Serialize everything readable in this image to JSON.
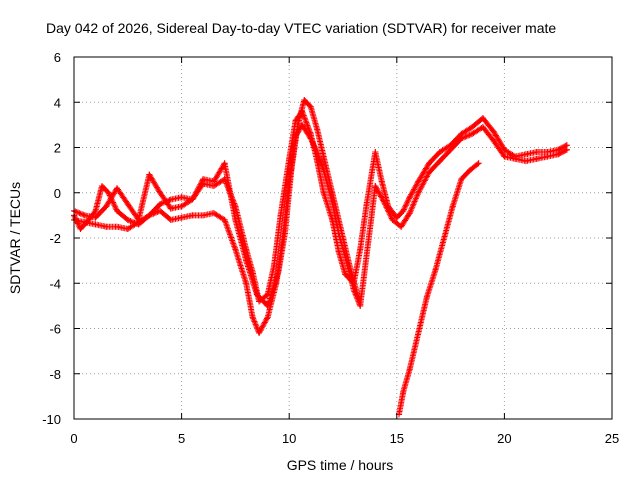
{
  "chart_data": {
    "type": "scatter",
    "title": "Day 042 of 2026, Sidereal Day-to-day VTEC variation (SDTVAR) for receiver mate",
    "xlabel": "GPS time / hours",
    "ylabel": "SDTVAR / TECUs",
    "xlim": [
      0,
      25
    ],
    "ylim": [
      -10,
      6
    ],
    "xticks": [
      0,
      5,
      10,
      15,
      20,
      25
    ],
    "yticks": [
      -10,
      -8,
      -6,
      -4,
      -2,
      0,
      2,
      4,
      6
    ],
    "xtick_labels": [
      "0",
      "5",
      "10",
      "15",
      "20",
      "25"
    ],
    "ytick_labels": [
      "-10",
      "-8",
      "-6",
      "-4",
      "-2",
      "0",
      "2",
      "4",
      "6"
    ],
    "grid": true,
    "grid_style": "dotted",
    "legend": "none",
    "marker": "+",
    "color": "#ff0000",
    "series": [
      {
        "x": [
          0.0,
          0.3,
          0.6,
          1.0,
          1.3,
          1.6,
          2.0,
          2.5,
          3.0,
          3.5,
          4.0,
          4.5,
          5.0,
          5.5,
          6.0,
          6.5,
          7.0,
          7.5,
          8.0,
          8.3,
          8.6,
          9.0,
          9.3,
          9.6,
          10.0,
          10.3,
          10.6,
          11.0,
          11.3,
          11.6,
          12.0,
          12.3,
          12.6,
          13.0,
          13.3,
          13.6,
          14.0,
          14.3,
          14.6,
          15.0,
          15.3,
          15.6,
          16.0,
          16.5,
          17.0,
          17.5,
          18.0,
          18.5,
          19.0,
          19.5,
          20.0,
          20.5,
          21.0,
          21.5,
          22.0,
          22.5,
          22.9
        ],
        "y": [
          -1.0,
          -1.6,
          -1.3,
          -0.8,
          0.3,
          0.0,
          -0.8,
          -1.2,
          -1.4,
          -1.0,
          -0.5,
          -0.3,
          -0.2,
          -0.3,
          0.4,
          0.3,
          0.6,
          -0.6,
          -2.5,
          -3.5,
          -4.8,
          -4.5,
          -3.2,
          -1.0,
          1.5,
          3.2,
          3.6,
          2.6,
          1.4,
          0.0,
          -1.2,
          -2.6,
          -3.6,
          -4.0,
          -2.5,
          -0.5,
          1.8,
          0.5,
          -0.6,
          -1.1,
          -0.8,
          -0.2,
          0.5,
          1.3,
          1.8,
          2.1,
          2.6,
          2.9,
          3.3,
          2.7,
          1.9,
          1.6,
          1.7,
          1.8,
          1.8,
          1.9,
          2.1
        ]
      },
      {
        "x": [
          0.0,
          0.5,
          1.0,
          1.5,
          2.0,
          2.5,
          3.0,
          3.5,
          4.0,
          4.5,
          5.0,
          5.5,
          6.0,
          6.5,
          7.0,
          7.5,
          8.0,
          8.3,
          8.6,
          9.0,
          9.4,
          9.7,
          10.0,
          10.3,
          10.6,
          11.0,
          11.3,
          11.6,
          12.0,
          12.3,
          12.6,
          13.0,
          13.3,
          13.7,
          14.0,
          14.4,
          14.8,
          15.2,
          15.6,
          16.0,
          16.5,
          17.0,
          17.5,
          18.0,
          18.5,
          19.0,
          19.5,
          20.0,
          20.5,
          21.0,
          21.5,
          22.0,
          22.5,
          22.9
        ],
        "y": [
          -1.2,
          -1.3,
          -1.4,
          -1.5,
          -1.5,
          -1.6,
          -1.3,
          -1.0,
          -0.8,
          -1.2,
          -1.1,
          -1.0,
          -1.0,
          -0.9,
          -1.2,
          -2.5,
          -4.0,
          -5.5,
          -6.2,
          -5.5,
          -4.0,
          -2.0,
          0.5,
          2.5,
          3.0,
          2.4,
          1.8,
          1.0,
          -0.4,
          -1.8,
          -2.8,
          -4.3,
          -5.0,
          -2.0,
          0.3,
          -0.4,
          -1.2,
          -1.5,
          -0.9,
          0.0,
          0.9,
          1.4,
          1.9,
          2.4,
          2.6,
          2.9,
          2.3,
          1.6,
          1.5,
          1.4,
          1.5,
          1.6,
          1.7,
          1.9
        ]
      },
      {
        "x": [
          0.0,
          0.5,
          1.0,
          1.5,
          2.0,
          2.5,
          3.0,
          3.5,
          4.0,
          4.5,
          5.0,
          5.5,
          6.0,
          6.5,
          7.0,
          7.5,
          8.0,
          8.5,
          9.0,
          9.5,
          9.8,
          10.1,
          10.4,
          10.7,
          11.0,
          11.3,
          11.6,
          12.0,
          12.4,
          12.8,
          13.2
        ],
        "y": [
          -0.8,
          -1.0,
          -1.1,
          -0.6,
          0.2,
          -0.5,
          -1.2,
          0.8,
          0.0,
          -0.7,
          -0.6,
          -0.3,
          0.6,
          0.5,
          1.3,
          -1.2,
          -3.0,
          -4.5,
          -5.0,
          -3.5,
          -1.8,
          1.0,
          3.0,
          4.1,
          3.8,
          2.8,
          1.6,
          0.0,
          -1.6,
          -3.2,
          -4.6
        ]
      },
      {
        "x": [
          15.1,
          15.3,
          15.6,
          16.0,
          16.4,
          16.8,
          17.2,
          17.6,
          18.0,
          18.4,
          18.8
        ],
        "y": [
          -9.8,
          -8.8,
          -7.8,
          -6.2,
          -4.6,
          -3.4,
          -2.0,
          -0.6,
          0.6,
          1.0,
          1.3
        ]
      }
    ]
  }
}
